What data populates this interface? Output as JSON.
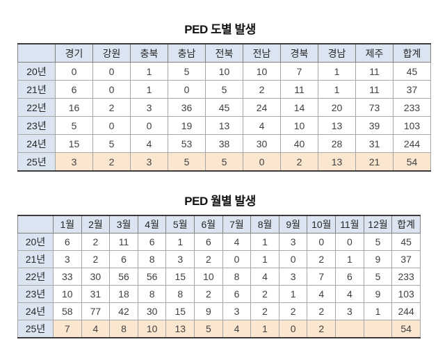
{
  "colors": {
    "header_bg": "#dbe5f1",
    "highlight_bg": "#fbe6cf",
    "border_dark": "#3b3b3b",
    "border_light": "#a6a6a6",
    "text": "#3f3f3f"
  },
  "tables": [
    {
      "id": "province",
      "title": "PED 도별 발생",
      "columns": [
        "",
        "경기",
        "강원",
        "충북",
        "충남",
        "전북",
        "전남",
        "경북",
        "경남",
        "제주",
        "합계"
      ],
      "rows": [
        {
          "label": "20년",
          "highlight": false,
          "values": [
            "0",
            "0",
            "1",
            "5",
            "10",
            "10",
            "7",
            "1",
            "11",
            "45"
          ]
        },
        {
          "label": "21년",
          "highlight": false,
          "values": [
            "6",
            "0",
            "1",
            "0",
            "5",
            "2",
            "11",
            "1",
            "11",
            "37"
          ]
        },
        {
          "label": "22년",
          "highlight": false,
          "values": [
            "16",
            "2",
            "3",
            "36",
            "45",
            "24",
            "14",
            "20",
            "73",
            "233"
          ]
        },
        {
          "label": "23년",
          "highlight": false,
          "values": [
            "5",
            "0",
            "0",
            "19",
            "13",
            "4",
            "10",
            "13",
            "39",
            "103"
          ]
        },
        {
          "label": "24년",
          "highlight": false,
          "values": [
            "15",
            "5",
            "4",
            "53",
            "38",
            "30",
            "40",
            "28",
            "31",
            "244"
          ]
        },
        {
          "label": "25년",
          "highlight": true,
          "values": [
            "3",
            "2",
            "3",
            "5",
            "5",
            "0",
            "2",
            "13",
            "21",
            "54"
          ]
        }
      ]
    },
    {
      "id": "monthly",
      "title": "PED 월별 발생",
      "columns": [
        "",
        "1월",
        "2월",
        "3월",
        "4월",
        "5월",
        "6월",
        "7월",
        "8월",
        "9월",
        "10월",
        "11월",
        "12월",
        "합계"
      ],
      "rows": [
        {
          "label": "20년",
          "highlight": false,
          "values": [
            "6",
            "2",
            "11",
            "6",
            "1",
            "6",
            "4",
            "1",
            "3",
            "0",
            "0",
            "5",
            "45"
          ]
        },
        {
          "label": "21년",
          "highlight": false,
          "values": [
            "3",
            "2",
            "6",
            "8",
            "3",
            "2",
            "0",
            "1",
            "0",
            "2",
            "1",
            "9",
            "37"
          ]
        },
        {
          "label": "22년",
          "highlight": false,
          "values": [
            "33",
            "30",
            "56",
            "56",
            "15",
            "10",
            "8",
            "4",
            "3",
            "7",
            "6",
            "5",
            "233"
          ]
        },
        {
          "label": "23년",
          "highlight": false,
          "values": [
            "10",
            "31",
            "18",
            "8",
            "8",
            "2",
            "6",
            "2",
            "1",
            "4",
            "4",
            "9",
            "103"
          ]
        },
        {
          "label": "24년",
          "highlight": false,
          "values": [
            "58",
            "77",
            "42",
            "30",
            "15",
            "9",
            "3",
            "2",
            "2",
            "2",
            "3",
            "1",
            "244"
          ]
        },
        {
          "label": "25년",
          "highlight": true,
          "values": [
            "7",
            "4",
            "8",
            "10",
            "13",
            "5",
            "4",
            "1",
            "0",
            "2",
            "",
            "",
            "54"
          ]
        }
      ]
    }
  ]
}
